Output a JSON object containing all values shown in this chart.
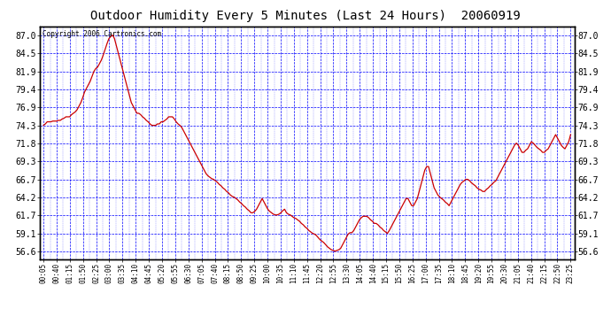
{
  "title": "Outdoor Humidity Every 5 Minutes (Last 24 Hours)  20060919",
  "copyright_text": "Copyright 2006 Cartronics.com",
  "background_color": "#ffffff",
  "plot_bg_color": "#ffffff",
  "grid_color": "#0000ff",
  "line_color": "#cc0000",
  "yticks": [
    56.6,
    59.1,
    61.7,
    64.2,
    66.7,
    69.3,
    71.8,
    74.3,
    76.9,
    79.4,
    81.9,
    84.5,
    87.0
  ],
  "ylim": [
    55.5,
    88.2
  ],
  "x_labels": [
    "00:05",
    "00:40",
    "01:15",
    "01:50",
    "02:25",
    "03:00",
    "03:35",
    "04:10",
    "04:45",
    "05:20",
    "05:55",
    "06:30",
    "07:05",
    "07:40",
    "08:15",
    "08:50",
    "09:25",
    "10:00",
    "10:35",
    "11:10",
    "11:45",
    "12:20",
    "12:55",
    "13:30",
    "14:05",
    "14:40",
    "15:15",
    "15:50",
    "16:25",
    "17:00",
    "17:35",
    "18:10",
    "18:45",
    "19:20",
    "19:55",
    "20:30",
    "21:05",
    "21:40",
    "22:15",
    "22:50",
    "23:25"
  ],
  "humidity_values": [
    74.3,
    74.5,
    74.8,
    74.8,
    74.8,
    74.9,
    74.9,
    74.9,
    75.0,
    75.0,
    75.2,
    75.3,
    75.5,
    75.5,
    75.5,
    75.8,
    76.0,
    76.2,
    76.5,
    77.0,
    77.5,
    78.2,
    79.0,
    79.5,
    80.0,
    80.5,
    81.2,
    81.9,
    82.3,
    82.5,
    83.0,
    83.5,
    84.2,
    85.0,
    85.8,
    86.5,
    86.8,
    87.0,
    86.5,
    85.5,
    84.5,
    83.5,
    82.5,
    81.5,
    80.5,
    79.5,
    78.5,
    77.5,
    77.0,
    76.5,
    76.0,
    76.0,
    75.8,
    75.5,
    75.3,
    75.0,
    74.8,
    74.5,
    74.3,
    74.3,
    74.3,
    74.5,
    74.5,
    74.8,
    74.8,
    75.0,
    75.2,
    75.5,
    75.5,
    75.5,
    75.2,
    74.8,
    74.5,
    74.3,
    74.0,
    73.5,
    73.0,
    72.5,
    72.0,
    71.5,
    71.0,
    70.5,
    70.0,
    69.5,
    69.0,
    68.5,
    68.0,
    67.5,
    67.2,
    67.0,
    66.8,
    66.7,
    66.5,
    66.3,
    66.0,
    65.8,
    65.5,
    65.3,
    65.0,
    64.8,
    64.5,
    64.3,
    64.2,
    64.0,
    63.8,
    63.5,
    63.3,
    63.0,
    62.8,
    62.5,
    62.3,
    62.0,
    62.0,
    62.2,
    62.5,
    63.0,
    63.5,
    64.0,
    63.5,
    63.0,
    62.5,
    62.2,
    62.0,
    61.8,
    61.7,
    61.7,
    61.8,
    62.0,
    62.3,
    62.5,
    62.0,
    61.8,
    61.7,
    61.5,
    61.3,
    61.2,
    61.0,
    60.8,
    60.5,
    60.3,
    60.0,
    59.8,
    59.5,
    59.3,
    59.1,
    59.0,
    58.8,
    58.5,
    58.2,
    58.0,
    57.8,
    57.5,
    57.2,
    57.0,
    56.8,
    56.7,
    56.6,
    56.7,
    56.8,
    57.0,
    57.5,
    58.0,
    58.5,
    59.0,
    59.2,
    59.2,
    59.5,
    60.0,
    60.5,
    61.0,
    61.3,
    61.5,
    61.5,
    61.5,
    61.3,
    61.0,
    60.8,
    60.5,
    60.5,
    60.3,
    60.0,
    59.8,
    59.5,
    59.3,
    59.1,
    59.5,
    60.0,
    60.5,
    61.0,
    61.5,
    62.0,
    62.5,
    63.0,
    63.5,
    64.0,
    64.0,
    63.5,
    63.0,
    63.0,
    63.5,
    64.0,
    65.0,
    66.0,
    67.0,
    68.0,
    68.5,
    68.5,
    67.5,
    66.5,
    65.5,
    65.0,
    64.5,
    64.2,
    64.0,
    63.8,
    63.5,
    63.3,
    63.0,
    63.5,
    64.0,
    64.5,
    65.0,
    65.5,
    66.0,
    66.3,
    66.5,
    66.7,
    66.7,
    66.5,
    66.2,
    66.0,
    65.8,
    65.5,
    65.3,
    65.2,
    65.0,
    65.0,
    65.3,
    65.5,
    65.8,
    66.0,
    66.3,
    66.5,
    67.0,
    67.5,
    68.0,
    68.5,
    69.0,
    69.5,
    70.0,
    70.5,
    71.0,
    71.5,
    71.8,
    71.5,
    71.0,
    70.5,
    70.5,
    70.8,
    71.0,
    71.5,
    72.0,
    71.8,
    71.5,
    71.2,
    71.0,
    70.8,
    70.5,
    70.5,
    70.8,
    71.0,
    71.5,
    72.0,
    72.5,
    73.0,
    72.5,
    72.0,
    71.5,
    71.2,
    71.0,
    71.5,
    72.0,
    73.0
  ]
}
